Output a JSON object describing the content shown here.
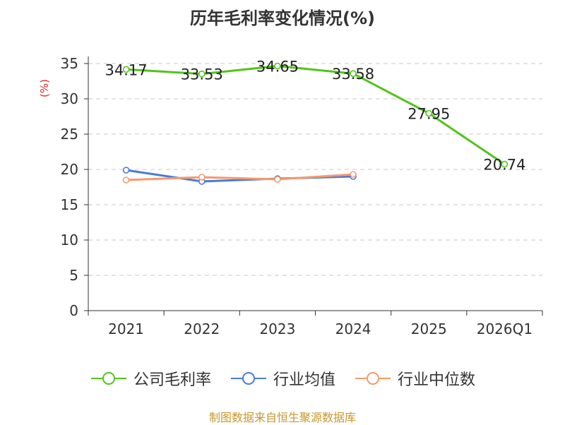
{
  "chart_data": {
    "type": "line",
    "title": "历年毛利率变化情况(%)",
    "ylabel": "(%)",
    "categories": [
      "2021",
      "2022",
      "2023",
      "2024",
      "2025",
      "2026Q1"
    ],
    "ylim": [
      0,
      35
    ],
    "yticks": [
      0,
      5,
      10,
      15,
      20,
      25,
      30,
      35
    ],
    "grid": true,
    "legend_position": "bottom",
    "series": [
      {
        "name": "公司毛利率",
        "color": "#52c41a",
        "values": [
          34.17,
          33.53,
          34.65,
          33.58,
          27.95,
          20.74
        ],
        "labels": [
          "34.17",
          "33.53",
          "34.65",
          "33.58",
          "27.95",
          "20.74"
        ]
      },
      {
        "name": "行业均值",
        "color": "#4a7bd8",
        "values": [
          19.9,
          18.3,
          18.7,
          19.0,
          null,
          null
        ]
      },
      {
        "name": "行业中位数",
        "color": "#f59a6b",
        "values": [
          18.5,
          18.9,
          18.6,
          19.3,
          null,
          null
        ]
      }
    ]
  },
  "source": "制图数据来自恒生聚源数据库"
}
